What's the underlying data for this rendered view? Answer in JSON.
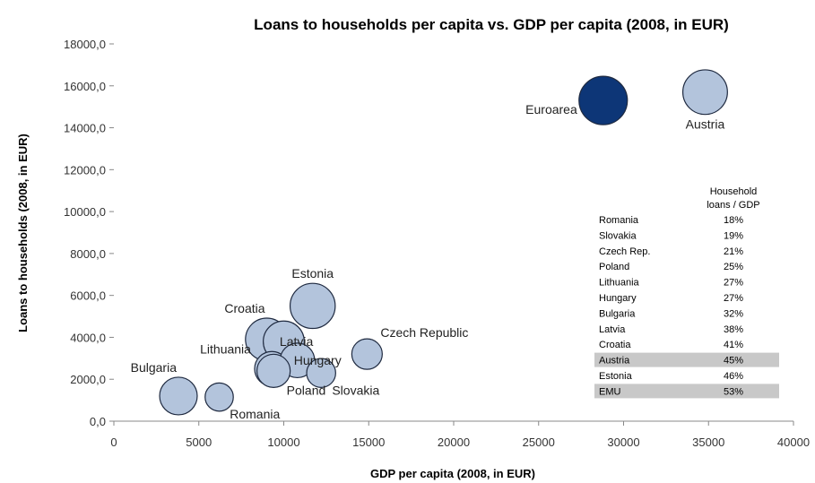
{
  "chart_data": {
    "type": "scatter",
    "title": "Loans to households per capita vs. GDP per capita (2008, in EUR)",
    "xlabel": "GDP per capita (2008, in EUR)",
    "ylabel": "Loans to households (2008, in EUR)",
    "xlim": [
      0,
      40000
    ],
    "ylim": [
      0,
      18000
    ],
    "xticks": [
      "0",
      "5000",
      "10000",
      "15000",
      "20000",
      "25000",
      "30000",
      "35000",
      "40000"
    ],
    "yticks": [
      "0,0",
      "2000,0",
      "4000,0",
      "6000,0",
      "8000,0",
      "10000,0",
      "12000,0",
      "14000,0",
      "16000,0",
      "18000,0"
    ],
    "points": [
      {
        "label": "Bulgaria",
        "x": 3800,
        "y": 1200,
        "ratio": 0.32,
        "color": "#b3c4dc",
        "label_pos": "above-left"
      },
      {
        "label": "Romania",
        "x": 6200,
        "y": 1150,
        "ratio": 0.18,
        "color": "#b3c4dc",
        "label_pos": "below-right"
      },
      {
        "label": "Lithuania",
        "x": 9300,
        "y": 2500,
        "ratio": 0.27,
        "color": "#b3c4dc",
        "label_pos": "left"
      },
      {
        "label": "Croatia",
        "x": 9000,
        "y": 3900,
        "ratio": 0.41,
        "color": "#b3c4dc",
        "label_pos": "above-left"
      },
      {
        "label": "Latvia",
        "x": 10000,
        "y": 3800,
        "ratio": 0.38,
        "color": "#b3c4dc",
        "label_pos": "right"
      },
      {
        "label": "Hungary",
        "x": 10800,
        "y": 2900,
        "ratio": 0.27,
        "color": "#b3c4dc",
        "label_pos": "right"
      },
      {
        "label": "Poland",
        "x": 9400,
        "y": 2400,
        "ratio": 0.25,
        "color": "#b3c4dc",
        "label_pos": "below-right"
      },
      {
        "label": "Slovakia",
        "x": 12200,
        "y": 2300,
        "ratio": 0.19,
        "color": "#b3c4dc",
        "label_pos": "below-right"
      },
      {
        "label": "Estonia",
        "x": 11700,
        "y": 5500,
        "ratio": 0.46,
        "color": "#b3c4dc",
        "label_pos": "above"
      },
      {
        "label": "Czech Republic",
        "x": 14900,
        "y": 3200,
        "ratio": 0.21,
        "color": "#b3c4dc",
        "label_pos": "above-right"
      },
      {
        "label": "Euroarea",
        "x": 28800,
        "y": 15300,
        "ratio": 0.53,
        "color": "#0d3677",
        "label_pos": "left-below"
      },
      {
        "label": "Austria",
        "x": 34800,
        "y": 15700,
        "ratio": 0.45,
        "color": "#b3c4dc",
        "label_pos": "below"
      }
    ],
    "table": {
      "header": [
        "Household",
        "loans / GDP"
      ],
      "rows": [
        {
          "country": "Romania",
          "value": "18%",
          "highlight": false
        },
        {
          "country": "Slovakia",
          "value": "19%",
          "highlight": false
        },
        {
          "country": "Czech Rep.",
          "value": "21%",
          "highlight": false
        },
        {
          "country": "Poland",
          "value": "25%",
          "highlight": false
        },
        {
          "country": "Lithuania",
          "value": "27%",
          "highlight": false
        },
        {
          "country": "Hungary",
          "value": "27%",
          "highlight": false
        },
        {
          "country": "Bulgaria",
          "value": "32%",
          "highlight": false
        },
        {
          "country": "Latvia",
          "value": "38%",
          "highlight": false
        },
        {
          "country": "Croatia",
          "value": "41%",
          "highlight": false
        },
        {
          "country": "Austria",
          "value": "45%",
          "highlight": true
        },
        {
          "country": "Estonia",
          "value": "46%",
          "highlight": false
        },
        {
          "country": "EMU",
          "value": "53%",
          "highlight": true
        }
      ]
    }
  }
}
